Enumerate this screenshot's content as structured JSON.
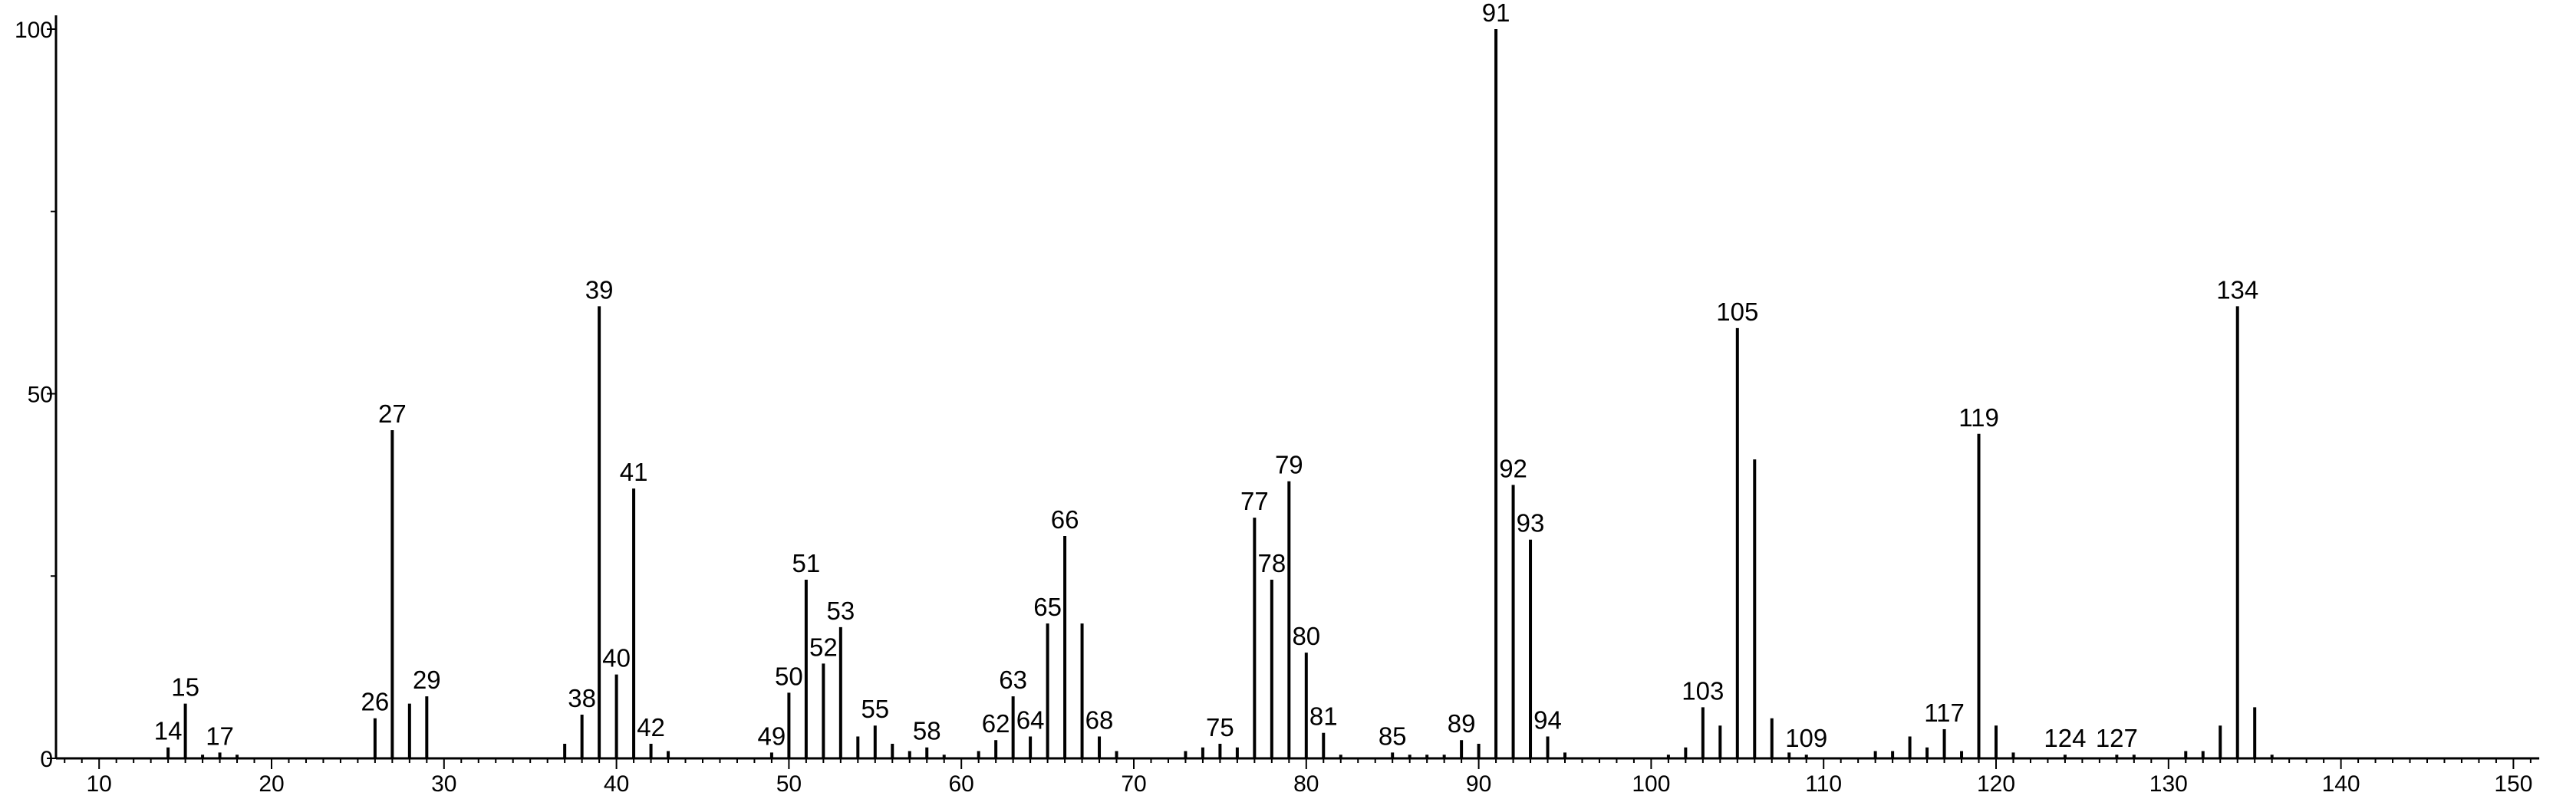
{
  "chart_data": {
    "type": "bar",
    "title": "",
    "xlabel": "",
    "ylabel": "",
    "xlim": [
      7.5,
      151.5
    ],
    "ylim": [
      0,
      100
    ],
    "x_ticks": [
      10,
      20,
      30,
      40,
      50,
      60,
      70,
      80,
      90,
      100,
      110,
      120,
      130,
      140,
      150
    ],
    "y_ticks": [
      0,
      50,
      100
    ],
    "grid": false,
    "peaks": [
      {
        "mz": 14,
        "intensity": 1.5,
        "label": "14"
      },
      {
        "mz": 15,
        "intensity": 7.5,
        "label": "15"
      },
      {
        "mz": 16,
        "intensity": 0.5,
        "label": ""
      },
      {
        "mz": 17,
        "intensity": 0.8,
        "label": "17"
      },
      {
        "mz": 18,
        "intensity": 0.5,
        "label": ""
      },
      {
        "mz": 26,
        "intensity": 5.5,
        "label": "26"
      },
      {
        "mz": 27,
        "intensity": 45,
        "label": "27"
      },
      {
        "mz": 28,
        "intensity": 7.5,
        "label": ""
      },
      {
        "mz": 29,
        "intensity": 8.5,
        "label": "29"
      },
      {
        "mz": 37,
        "intensity": 2,
        "label": ""
      },
      {
        "mz": 38,
        "intensity": 6,
        "label": "38"
      },
      {
        "mz": 39,
        "intensity": 62,
        "label": "39"
      },
      {
        "mz": 40,
        "intensity": 11.5,
        "label": "40"
      },
      {
        "mz": 41,
        "intensity": 37,
        "label": "41"
      },
      {
        "mz": 42,
        "intensity": 2,
        "label": "42"
      },
      {
        "mz": 43,
        "intensity": 1,
        "label": ""
      },
      {
        "mz": 49,
        "intensity": 0.8,
        "label": "49"
      },
      {
        "mz": 50,
        "intensity": 9,
        "label": "50"
      },
      {
        "mz": 51,
        "intensity": 24.5,
        "label": "51"
      },
      {
        "mz": 52,
        "intensity": 13,
        "label": "52"
      },
      {
        "mz": 53,
        "intensity": 18,
        "label": "53"
      },
      {
        "mz": 54,
        "intensity": 3,
        "label": ""
      },
      {
        "mz": 55,
        "intensity": 4.5,
        "label": "55"
      },
      {
        "mz": 56,
        "intensity": 2,
        "label": ""
      },
      {
        "mz": 57,
        "intensity": 1,
        "label": ""
      },
      {
        "mz": 58,
        "intensity": 1.5,
        "label": "58"
      },
      {
        "mz": 59,
        "intensity": 0.5,
        "label": ""
      },
      {
        "mz": 61,
        "intensity": 1,
        "label": ""
      },
      {
        "mz": 62,
        "intensity": 2.5,
        "label": "62"
      },
      {
        "mz": 63,
        "intensity": 8.5,
        "label": "63"
      },
      {
        "mz": 64,
        "intensity": 3,
        "label": "64"
      },
      {
        "mz": 65,
        "intensity": 18.5,
        "label": "65"
      },
      {
        "mz": 66,
        "intensity": 30.5,
        "label": "66"
      },
      {
        "mz": 67,
        "intensity": 18.5,
        "label": ""
      },
      {
        "mz": 68,
        "intensity": 3,
        "label": "68"
      },
      {
        "mz": 69,
        "intensity": 1,
        "label": ""
      },
      {
        "mz": 73,
        "intensity": 1,
        "label": ""
      },
      {
        "mz": 74,
        "intensity": 1.5,
        "label": ""
      },
      {
        "mz": 75,
        "intensity": 2,
        "label": "75"
      },
      {
        "mz": 76,
        "intensity": 1.5,
        "label": ""
      },
      {
        "mz": 77,
        "intensity": 33,
        "label": "77"
      },
      {
        "mz": 78,
        "intensity": 24.5,
        "label": "78"
      },
      {
        "mz": 79,
        "intensity": 38,
        "label": "79"
      },
      {
        "mz": 80,
        "intensity": 14.5,
        "label": "80"
      },
      {
        "mz": 81,
        "intensity": 3.5,
        "label": "81"
      },
      {
        "mz": 82,
        "intensity": 0.5,
        "label": ""
      },
      {
        "mz": 85,
        "intensity": 0.8,
        "label": "85"
      },
      {
        "mz": 86,
        "intensity": 0.5,
        "label": ""
      },
      {
        "mz": 87,
        "intensity": 0.5,
        "label": ""
      },
      {
        "mz": 88,
        "intensity": 0.5,
        "label": ""
      },
      {
        "mz": 89,
        "intensity": 2.5,
        "label": "89"
      },
      {
        "mz": 90,
        "intensity": 2,
        "label": ""
      },
      {
        "mz": 91,
        "intensity": 100,
        "label": "91"
      },
      {
        "mz": 92,
        "intensity": 37.5,
        "label": "92"
      },
      {
        "mz": 93,
        "intensity": 30,
        "label": "93"
      },
      {
        "mz": 94,
        "intensity": 3,
        "label": "94"
      },
      {
        "mz": 95,
        "intensity": 0.8,
        "label": ""
      },
      {
        "mz": 101,
        "intensity": 0.5,
        "label": ""
      },
      {
        "mz": 102,
        "intensity": 1.5,
        "label": ""
      },
      {
        "mz": 103,
        "intensity": 7,
        "label": "103"
      },
      {
        "mz": 104,
        "intensity": 4.5,
        "label": ""
      },
      {
        "mz": 105,
        "intensity": 59,
        "label": "105"
      },
      {
        "mz": 106,
        "intensity": 41,
        "label": ""
      },
      {
        "mz": 107,
        "intensity": 5.5,
        "label": ""
      },
      {
        "mz": 108,
        "intensity": 0.8,
        "label": ""
      },
      {
        "mz": 109,
        "intensity": 0.5,
        "label": "109"
      },
      {
        "mz": 113,
        "intensity": 1,
        "label": ""
      },
      {
        "mz": 114,
        "intensity": 1,
        "label": ""
      },
      {
        "mz": 115,
        "intensity": 3,
        "label": ""
      },
      {
        "mz": 116,
        "intensity": 1.5,
        "label": ""
      },
      {
        "mz": 117,
        "intensity": 4,
        "label": "117"
      },
      {
        "mz": 118,
        "intensity": 1,
        "label": ""
      },
      {
        "mz": 119,
        "intensity": 44.5,
        "label": "119"
      },
      {
        "mz": 120,
        "intensity": 4.5,
        "label": ""
      },
      {
        "mz": 121,
        "intensity": 0.8,
        "label": ""
      },
      {
        "mz": 124,
        "intensity": 0.5,
        "label": "124"
      },
      {
        "mz": 127,
        "intensity": 0.5,
        "label": "127"
      },
      {
        "mz": 128,
        "intensity": 0.5,
        "label": ""
      },
      {
        "mz": 131,
        "intensity": 1,
        "label": ""
      },
      {
        "mz": 132,
        "intensity": 1,
        "label": ""
      },
      {
        "mz": 133,
        "intensity": 4.5,
        "label": ""
      },
      {
        "mz": 134,
        "intensity": 62,
        "label": "134"
      },
      {
        "mz": 135,
        "intensity": 7,
        "label": ""
      },
      {
        "mz": 136,
        "intensity": 0.5,
        "label": ""
      }
    ]
  }
}
